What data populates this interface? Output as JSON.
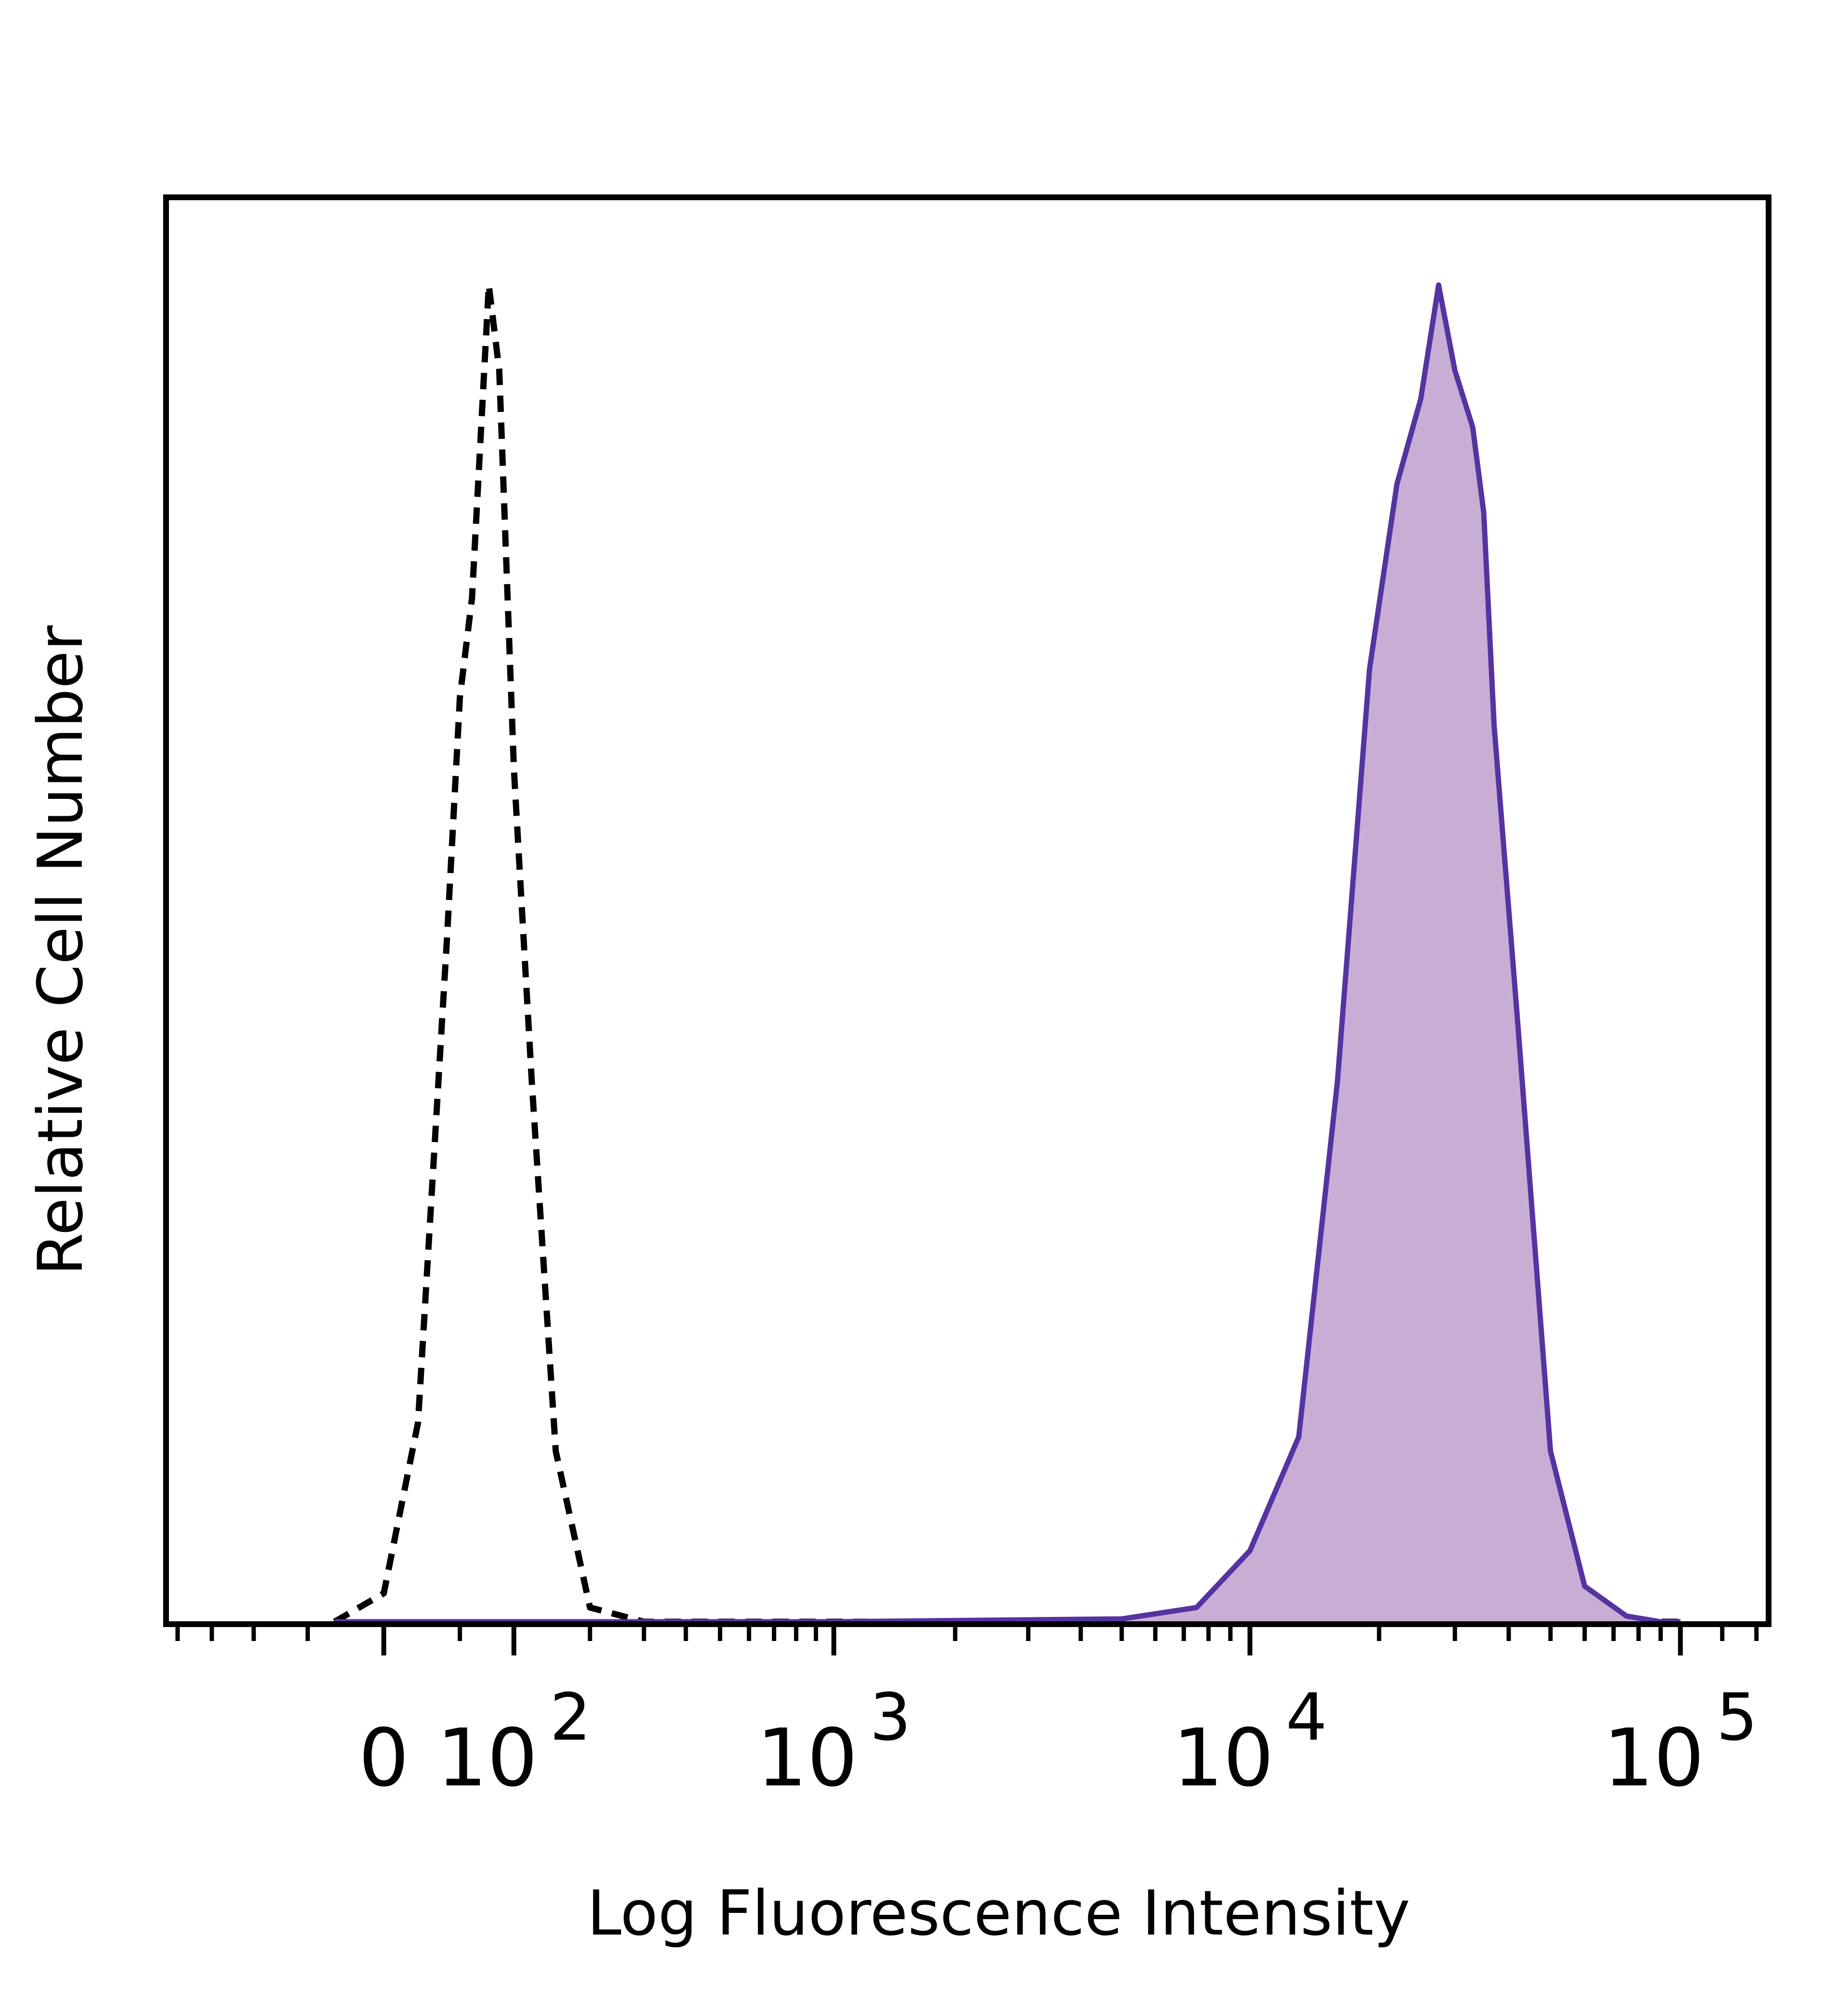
{
  "chart_data": {
    "type": "area",
    "title": "",
    "xlabel": "Log Fluorescence Intensity",
    "ylabel": "Relative Cell Number",
    "x_scale": "biexponential",
    "ylim": [
      0,
      100
    ],
    "grid": false,
    "x_ticks": [
      {
        "value": 0,
        "base": "0",
        "exponent": ""
      },
      {
        "value": 100,
        "base": "10",
        "exponent": "2"
      },
      {
        "value": 1000,
        "base": "10",
        "exponent": "3"
      },
      {
        "value": 10000,
        "base": "10",
        "exponent": "4"
      },
      {
        "value": 100000,
        "base": "10",
        "exponent": "5"
      }
    ],
    "series": [
      {
        "style": "dashed",
        "color": "#000000",
        "fill": null,
        "x": [
          -30,
          0,
          20,
          40,
          50,
          60,
          75,
          85,
          100,
          120,
          150,
          200,
          300,
          600,
          1500,
          3000,
          5000,
          8000,
          10000,
          20000,
          40000,
          100000
        ],
        "y": [
          0,
          2,
          14,
          48,
          65,
          72,
          94,
          88,
          60,
          38,
          12,
          1,
          0,
          0,
          0,
          0,
          0,
          0,
          0,
          0,
          0,
          0
        ]
      },
      {
        "style": "solid",
        "color": "#5533a0",
        "fill": "#c8aed4",
        "x": [
          -30,
          0,
          100,
          1000,
          5000,
          7500,
          10000,
          13000,
          16000,
          19000,
          22000,
          25000,
          27500,
          30000,
          33000,
          35000,
          37000,
          42000,
          50000,
          60000,
          75000,
          90000,
          100000
        ],
        "y": [
          0,
          0,
          0,
          0,
          0.2,
          1,
          5,
          13,
          38,
          67,
          80,
          86,
          94,
          88,
          84,
          78,
          63,
          42,
          12,
          2.5,
          0.4,
          0,
          0
        ]
      }
    ]
  }
}
